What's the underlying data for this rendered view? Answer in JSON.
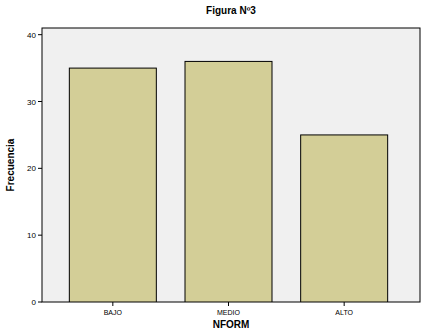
{
  "chart_data": {
    "type": "bar",
    "title": "Figura Nº3",
    "x_label": "NFORM",
    "y_label": "Frecuencia",
    "categories": [
      "BAJO",
      "MEDIO",
      "ALTO"
    ],
    "values": [
      35,
      36,
      25
    ],
    "color": "#d3ce97",
    "ylim": [
      0,
      41
    ],
    "yticks": [
      0,
      10,
      20,
      30,
      40
    ],
    "grid": false
  }
}
